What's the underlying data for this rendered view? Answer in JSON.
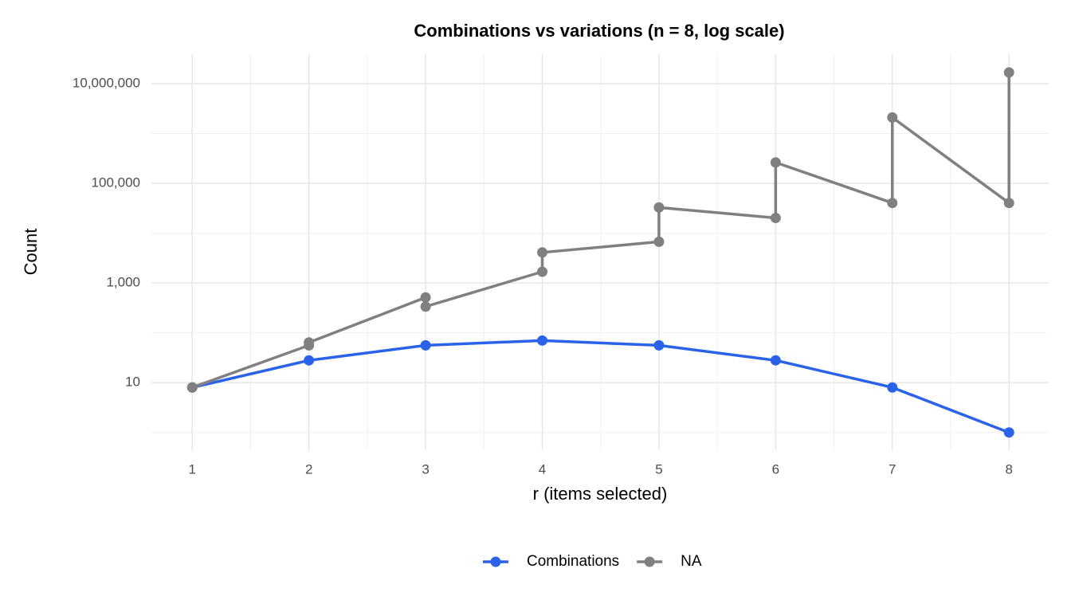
{
  "chart_data": {
    "type": "line",
    "title": "Combinations vs variations (n = 8, log scale)",
    "x_label": "r (items selected)",
    "y_label": "Count",
    "log_y": true,
    "grid": true,
    "legend_position": "bottom",
    "xlim": [
      0.65,
      8.34
    ],
    "xticks": [
      1,
      2,
      3,
      4,
      5,
      6,
      7,
      8
    ],
    "xminor_ticks": [
      1.5,
      2.5,
      3.5,
      4.5,
      5.5,
      6.5,
      7.5
    ],
    "ylim": [
      0.44,
      39000000
    ],
    "yticks": [
      {
        "value": 10,
        "label": "10"
      },
      {
        "value": 1000,
        "label": "1,000"
      },
      {
        "value": 100000,
        "label": "100,000"
      },
      {
        "value": 10000000,
        "label": "10,000,000"
      }
    ],
    "yminor_ticks": [
      1,
      100,
      10000,
      1000000
    ],
    "series": [
      {
        "name": "Combinations",
        "color": "#2b63e8",
        "x": [
          1,
          2,
          3,
          4,
          5,
          6,
          7,
          8
        ],
        "values": [
          8,
          28,
          56,
          70,
          56,
          28,
          8,
          1
        ]
      },
      {
        "name": "NA",
        "color": "#808080",
        "x": [
          1,
          2,
          2,
          3,
          3,
          4,
          4,
          5,
          5,
          6,
          6,
          7,
          7,
          8,
          8
        ],
        "values": [
          8,
          56,
          64,
          512,
          336,
          1680,
          4096,
          6720,
          32768,
          20160,
          262144,
          40320,
          2097152,
          40320,
          16777216
        ]
      }
    ]
  }
}
